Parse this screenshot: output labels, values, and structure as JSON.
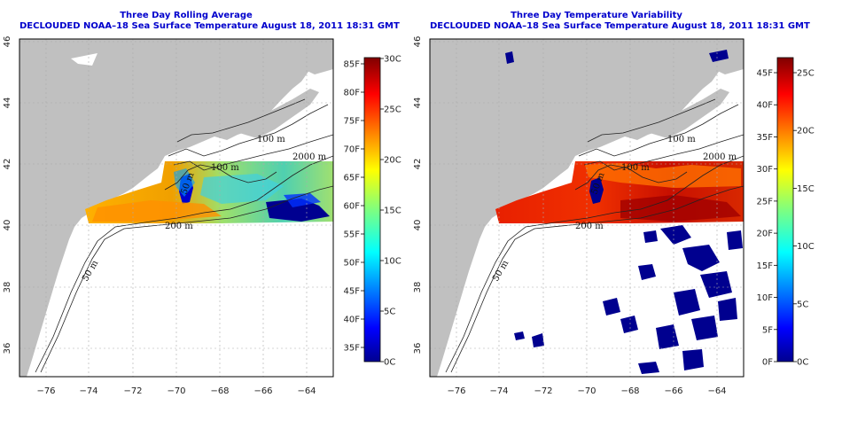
{
  "panels": [
    {
      "title": "Three Day Rolling Average",
      "subtitle": "DECLOUDED NOAA–18 Sea Surface Temperature August 18, 2011 18:31 GMT",
      "colorbar": {
        "fahrenheit": [
          "85F",
          "80F",
          "75F",
          "70F",
          "65F",
          "60F",
          "55F",
          "50F",
          "45F",
          "40F",
          "35F"
        ],
        "celsius": [
          "30C",
          "25C",
          "20C",
          "15C",
          "10C",
          "5C",
          "0C"
        ]
      }
    },
    {
      "title": "Three Day Temperature Variability",
      "subtitle": "DECLOUDED NOAA–18 Sea Surface Temperature August 18, 2011 18:31 GMT",
      "colorbar": {
        "fahrenheit": [
          "45F",
          "40F",
          "35F",
          "30F",
          "25F",
          "20F",
          "15F",
          "10F",
          "5F",
          "0F"
        ],
        "celsius": [
          "25C",
          "20C",
          "15C",
          "10C",
          "5C",
          "0C"
        ]
      }
    }
  ],
  "axes": {
    "x_ticks": [
      "−76",
      "−74",
      "−72",
      "−70",
      "−68",
      "−66",
      "−64"
    ],
    "y_ticks": [
      "46",
      "44",
      "42",
      "40",
      "38",
      "36"
    ]
  },
  "contour_labels": [
    "100 m",
    "2000 m",
    "100 m",
    "50 m",
    "200 m",
    "50 m"
  ],
  "colors": {
    "title": "#0000cc",
    "land": "#c0c0c0",
    "ocean": "#ffffff",
    "sst_cold": "#00008f",
    "sst_warm": "#b30000"
  }
}
